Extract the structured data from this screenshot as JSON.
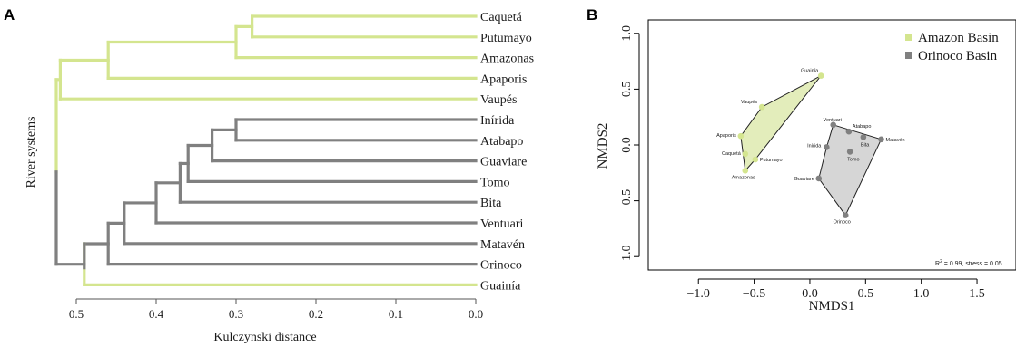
{
  "panels": {
    "a": "A",
    "b": "B"
  },
  "colors": {
    "amazon": "#d4e58f",
    "orinoco": "#808080",
    "amazon_fill": "#e3edbb",
    "orinoco_fill": "#d6d6d6"
  },
  "chart_data": [
    {
      "type": "dendrogram",
      "xlabel": "Kulczynski distance",
      "ylabel": "River systems",
      "xlim": [
        0.525,
        0.0
      ],
      "xticks": [
        "0.5",
        "0.4",
        "0.3",
        "0.2",
        "0.1",
        "0.0"
      ],
      "leaves": [
        {
          "name": "Caquetá",
          "basin": "amazon"
        },
        {
          "name": "Putumayo",
          "basin": "amazon"
        },
        {
          "name": "Amazonas",
          "basin": "amazon"
        },
        {
          "name": "Apaporis",
          "basin": "amazon"
        },
        {
          "name": "Vaupés",
          "basin": "amazon"
        },
        {
          "name": "Inírida",
          "basin": "orinoco"
        },
        {
          "name": "Atabapo",
          "basin": "orinoco"
        },
        {
          "name": "Guaviare",
          "basin": "orinoco"
        },
        {
          "name": "Tomo",
          "basin": "orinoco"
        },
        {
          "name": "Bita",
          "basin": "orinoco"
        },
        {
          "name": "Ventuari",
          "basin": "orinoco"
        },
        {
          "name": "Matavén",
          "basin": "orinoco"
        },
        {
          "name": "Orinoco",
          "basin": "orinoco"
        },
        {
          "name": "Guainía",
          "basin": "amazon"
        }
      ],
      "merges": [
        {
          "a": "Caquetá",
          "b": "Putumayo",
          "height": 0.28,
          "basin": "amazon"
        },
        {
          "a": "Caquetá+Putumayo",
          "b": "Amazonas",
          "height": 0.3,
          "basin": "amazon"
        },
        {
          "a": "Caquetá+Putumayo+Amazonas",
          "b": "Apaporis",
          "height": 0.46,
          "basin": "amazon"
        },
        {
          "a": "Caquetá…Apaporis",
          "b": "Vaupés",
          "height": 0.52,
          "basin": "amazon"
        },
        {
          "a": "Inírida",
          "b": "Atabapo",
          "height": 0.3,
          "basin": "orinoco"
        },
        {
          "a": "Inírida+Atabapo",
          "b": "Guaviare",
          "height": 0.33,
          "basin": "orinoco"
        },
        {
          "a": "Inírida…Guaviare",
          "b": "Tomo",
          "height": 0.36,
          "basin": "orinoco"
        },
        {
          "a": "Inírida…Tomo",
          "b": "Bita",
          "height": 0.37,
          "basin": "orinoco"
        },
        {
          "a": "Inírida…Bita",
          "b": "Ventuari",
          "height": 0.4,
          "basin": "orinoco"
        },
        {
          "a": "Inírida…Ventuari",
          "b": "Matavén",
          "height": 0.44,
          "basin": "orinoco"
        },
        {
          "a": "Inírida…Matavén",
          "b": "Orinoco",
          "height": 0.46,
          "basin": "orinoco"
        },
        {
          "a": "Inírida…Orinoco",
          "b": "Guainía",
          "height": 0.49,
          "basin": "orinoco"
        },
        {
          "a": "Amazon cluster",
          "b": "Orinoco cluster",
          "height": 0.525,
          "basin": "mixed"
        }
      ]
    },
    {
      "type": "scatter",
      "xlabel": "NMDS1",
      "ylabel": "NMDS2",
      "xlim": [
        -1.45,
        1.85
      ],
      "ylim": [
        -1.12,
        1.12
      ],
      "xticks": [
        "−1.0",
        "−0.5",
        "0.0",
        "0.5",
        "1.0",
        "1.5"
      ],
      "xtick_values": [
        -1.0,
        -0.5,
        0.0,
        0.5,
        1.0,
        1.5
      ],
      "yticks": [
        "1.0",
        "0.5",
        "0.0",
        "−0.5",
        "−1.0"
      ],
      "ytick_values": [
        1.0,
        0.5,
        0.0,
        -0.5,
        -1.0
      ],
      "legend_position": "top-right",
      "annotation_prefix": "R",
      "annotation_sup": "2",
      "annotation_rest": " = 0.99, stress = 0.05",
      "series": [
        {
          "name": "Amazon Basin",
          "key": "amazon",
          "points": [
            {
              "label": "Guainía",
              "x": 0.1,
              "y": 0.62
            },
            {
              "label": "Vaupés",
              "x": -0.43,
              "y": 0.34
            },
            {
              "label": "Apaporis",
              "x": -0.62,
              "y": 0.08
            },
            {
              "label": "Caquetá",
              "x": -0.58,
              "y": -0.08
            },
            {
              "label": "Putumayo",
              "x": -0.49,
              "y": -0.13
            },
            {
              "label": "Amazonas",
              "x": -0.58,
              "y": -0.23
            }
          ],
          "hull": [
            "Guainía",
            "Vaupés",
            "Apaporis",
            "Amazonas",
            "Putumayo"
          ]
        },
        {
          "name": "Orinoco Basin",
          "key": "orinoco",
          "points": [
            {
              "label": "Ventuari",
              "x": 0.21,
              "y": 0.18
            },
            {
              "label": "Atabapo",
              "x": 0.35,
              "y": 0.12
            },
            {
              "label": "Inírida",
              "x": 0.15,
              "y": -0.02
            },
            {
              "label": "Bita",
              "x": 0.48,
              "y": 0.07
            },
            {
              "label": "Tomo",
              "x": 0.36,
              "y": -0.06
            },
            {
              "label": "Matavén",
              "x": 0.64,
              "y": 0.05
            },
            {
              "label": "Guaviare",
              "x": 0.08,
              "y": -0.3
            },
            {
              "label": "Orinoco",
              "x": 0.32,
              "y": -0.63
            }
          ],
          "hull": [
            "Ventuari",
            "Matavén",
            "Orinoco",
            "Guaviare",
            "Inírida"
          ]
        }
      ]
    }
  ]
}
